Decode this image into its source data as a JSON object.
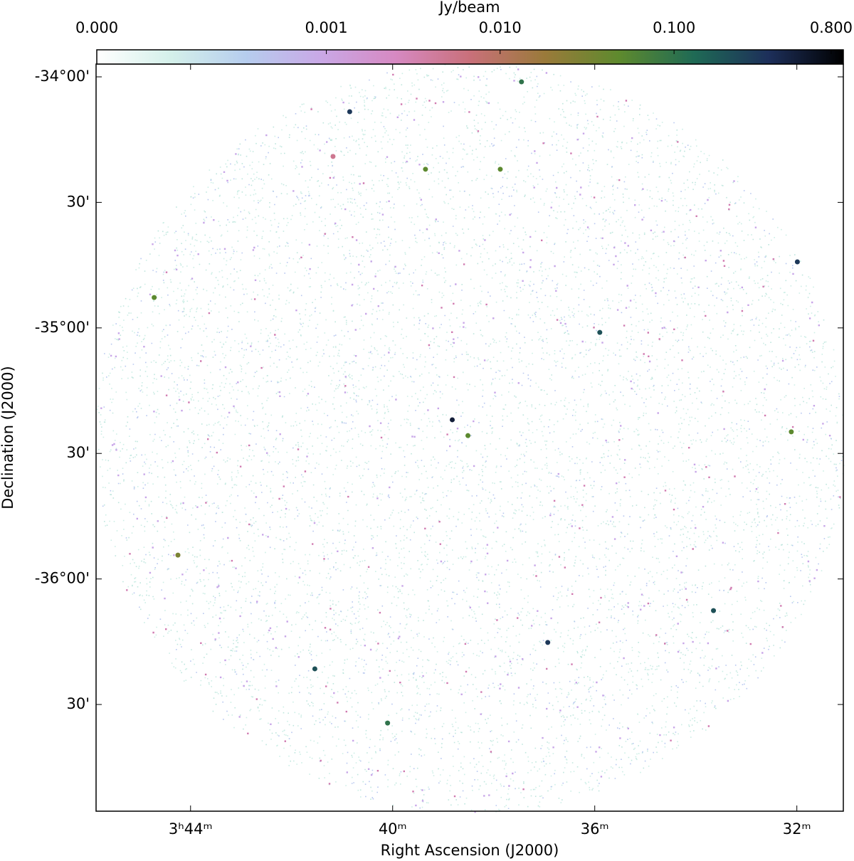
{
  "chart_data": {
    "type": "sky-image",
    "xlabel": "Right Ascension (J2000)",
    "ylabel": "Declination (J2000)",
    "xlim": [
      45.87,
      31.08
    ],
    "xticks": [
      {
        "value": 44,
        "label": "3ʰ44ᵐ"
      },
      {
        "value": 40,
        "label": "40ᵐ"
      },
      {
        "value": 36,
        "label": "36ᵐ"
      },
      {
        "value": 32,
        "label": "32ᵐ"
      }
    ],
    "ylim": [
      -36.925,
      -33.949
    ],
    "yticks": [
      {
        "value": -34,
        "label": "-34°00'"
      },
      {
        "value": -34.5,
        "label": "30'"
      },
      {
        "value": -35,
        "label": "-35°00'"
      },
      {
        "value": -35.5,
        "label": "30'"
      },
      {
        "value": -36,
        "label": "-36°00'"
      },
      {
        "value": -36.5,
        "label": "30'"
      }
    ],
    "colorbar": {
      "label": "Jy/beam",
      "scale": "asinh",
      "asinh_width": 9.6e-05,
      "lim": [
        0,
        0.94
      ],
      "ticks": [
        {
          "value": 0,
          "label": "0.000"
        },
        {
          "value": 0.001,
          "label": "0.001"
        },
        {
          "value": 0.01,
          "label": "0.010"
        },
        {
          "value": 0.1,
          "label": "0.100"
        },
        {
          "value": 0.8,
          "label": "0.800"
        }
      ],
      "colormap": [
        "#ffffff",
        "#d4f0ea",
        "#b6cdee",
        "#c9a8e6",
        "#d689c2",
        "#c9707a",
        "#9a7a3a",
        "#5e8a2e",
        "#1f6a55",
        "#1d2f5a",
        "#000000"
      ]
    },
    "sources": {
      "ra": [
        40.85,
        38.82,
        38.51,
        33.65,
        41.54,
        40.1,
        36.93,
        35.9,
        31.99,
        37.45,
        39.35,
        44.72,
        41.18,
        37.87,
        32.11,
        44.25
      ],
      "dec": [
        -34.139,
        -35.366,
        -35.429,
        -36.126,
        -36.358,
        -36.574,
        -36.253,
        -35.018,
        -34.737,
        -34.02,
        -34.368,
        -34.879,
        -34.317,
        -34.368,
        -35.414,
        -35.905
      ],
      "flux": [
        0.3,
        0.5,
        0.05,
        0.2,
        0.2,
        0.1,
        0.3,
        0.2,
        0.3,
        0.1,
        0.05,
        0.05,
        0.005,
        0.05,
        0.05,
        0.03
      ]
    }
  }
}
